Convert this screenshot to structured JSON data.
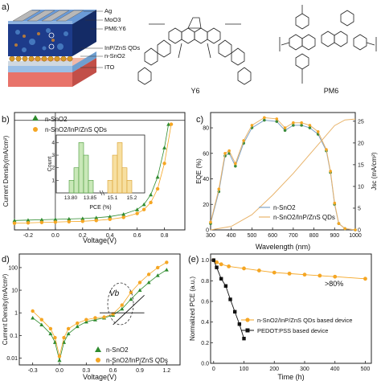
{
  "panel_a": {
    "label": "a)",
    "layers": [
      "Ag",
      "MoO3",
      "PM6:Y6",
      "InP/ZnS QDs",
      "n-SnO2",
      "ITO"
    ],
    "molecule_labels": [
      "Y6",
      "PM6"
    ]
  },
  "colors": {
    "green": "#2e8b2e",
    "orange": "#f5a623",
    "blue_line": "#7fa3c8",
    "orange_line": "#e8b36a"
  },
  "chart_data": [
    {
      "type": "line",
      "panel": "b)",
      "xlabel": "Voltage(V)",
      "ylabel": "Current Density(mA/cm²)",
      "xticks": [
        "-0.2",
        "0.0",
        "0.2",
        "0.4",
        "0.6",
        "0.8"
      ],
      "xlim": [
        -0.3,
        0.95
      ],
      "series": [
        {
          "name": "n-SnO2",
          "marker": "triangle",
          "x": [
            -0.3,
            -0.2,
            -0.1,
            0.0,
            0.1,
            0.2,
            0.3,
            0.4,
            0.5,
            0.6,
            0.65,
            0.7,
            0.75,
            0.8,
            0.83
          ],
          "y": [
            -25.6,
            -25.5,
            -25.4,
            -25.3,
            -25.2,
            -25.1,
            -24.9,
            -24.6,
            -24.0,
            -22.8,
            -21.5,
            -19.0,
            -14.5,
            -7.0,
            -1.0
          ]
        },
        {
          "name": "n-SnO2/InP/ZnS QDs",
          "marker": "circle",
          "x": [
            -0.3,
            -0.2,
            -0.1,
            0.0,
            0.1,
            0.2,
            0.3,
            0.4,
            0.5,
            0.6,
            0.65,
            0.7,
            0.75,
            0.8,
            0.85
          ],
          "y": [
            -26.3,
            -26.2,
            -26.1,
            -26.0,
            -25.9,
            -25.8,
            -25.6,
            -25.3,
            -24.8,
            -23.8,
            -22.8,
            -21.0,
            -17.5,
            -11.0,
            -1.0
          ]
        }
      ],
      "inset": {
        "ylabel": "Count",
        "xlabel": "PCE (%)",
        "xticks": [
          "13.80",
          "13.85",
          "15.1",
          "15.2"
        ],
        "yticks": [
          "1",
          "2",
          "3",
          "4"
        ],
        "groups": [
          {
            "name": "n-SnO2",
            "heights": [
              1,
              2,
              4,
              3,
              1
            ]
          },
          {
            "name": "n-SnO2/InP/ZnS QDs",
            "heights": [
              1,
              3,
              4,
              2,
              1
            ]
          }
        ]
      }
    },
    {
      "type": "line",
      "panel": "c)",
      "xlabel": "Wavelength (nm)",
      "ylabel": "EQE (%)",
      "y2label": "Jsc (mA/cm²)",
      "xticks": [
        "300",
        "400",
        "500",
        "600",
        "700",
        "800",
        "900",
        "1000"
      ],
      "yticks": [
        "0",
        "20",
        "40",
        "60",
        "80"
      ],
      "y2ticks": [
        "0",
        "5",
        "10",
        "15",
        "20",
        "25"
      ],
      "series": [
        {
          "name": "n-SnO2",
          "x": [
            300,
            340,
            370,
            390,
            420,
            460,
            500,
            560,
            620,
            660,
            700,
            740,
            780,
            820,
            860,
            880,
            900,
            920,
            950,
            1000
          ],
          "y": [
            5,
            30,
            58,
            60,
            50,
            68,
            80,
            86,
            85,
            78,
            82,
            82,
            80,
            75,
            62,
            45,
            20,
            5,
            1,
            0
          ]
        },
        {
          "name": "n-SnO2/InP/ZnS QDs",
          "x": [
            300,
            340,
            370,
            390,
            420,
            460,
            500,
            560,
            620,
            660,
            700,
            740,
            780,
            820,
            860,
            880,
            900,
            920,
            950,
            1000
          ],
          "y": [
            6,
            32,
            60,
            62,
            52,
            70,
            82,
            88,
            87,
            80,
            84,
            84,
            82,
            77,
            63,
            46,
            21,
            5,
            1,
            0
          ]
        }
      ],
      "jsc_series": [
        {
          "name": "Jsc",
          "x": [
            300,
            400,
            500,
            600,
            700,
            800,
            900,
            950,
            1000
          ],
          "y": [
            0,
            0.8,
            3.5,
            8.0,
            13.0,
            18.5,
            24.0,
            25.3,
            25.5
          ]
        }
      ]
    },
    {
      "type": "line",
      "panel": "d)",
      "xlabel": "Voltage(V)",
      "ylabel": "Current Density(mA/cm²)",
      "xticks": [
        "-0.3",
        "0.0",
        "0.3",
        "0.6",
        "0.9",
        "1.2"
      ],
      "yticks": [
        "0.01",
        "0.1",
        "1",
        "10",
        "100"
      ],
      "yscale": "log",
      "annotation": "Vb",
      "series": [
        {
          "name": "n-SnO2",
          "marker": "triangle",
          "x": [
            -0.3,
            -0.2,
            -0.1,
            -0.05,
            0.0,
            0.05,
            0.1,
            0.2,
            0.3,
            0.4,
            0.5,
            0.6,
            0.7,
            0.8,
            0.9,
            1.0,
            1.1,
            1.2
          ],
          "y": [
            0.6,
            0.3,
            0.12,
            0.05,
            0.008,
            0.05,
            0.12,
            0.25,
            0.4,
            0.5,
            0.6,
            0.8,
            1.5,
            4,
            10,
            22,
            45,
            80
          ]
        },
        {
          "name": "n-SnO2/InP/ZnS QDs",
          "marker": "circle",
          "x": [
            -0.3,
            -0.2,
            -0.1,
            -0.05,
            0.0,
            0.05,
            0.1,
            0.2,
            0.3,
            0.4,
            0.5,
            0.6,
            0.7,
            0.8,
            0.9,
            1.0,
            1.1,
            1.2
          ],
          "y": [
            1.2,
            0.5,
            0.2,
            0.08,
            0.012,
            0.08,
            0.2,
            0.35,
            0.5,
            0.6,
            0.65,
            0.9,
            2.2,
            8,
            22,
            50,
            100,
            170
          ]
        }
      ]
    },
    {
      "type": "line",
      "panel": "(e)",
      "xlabel": "Time (h)",
      "ylabel": "Normalized PCE (a.u.)",
      "xticks": [
        "0",
        "100",
        "200",
        "300",
        "400",
        "500"
      ],
      "yticks": [
        "0.0",
        "0.2",
        "0.4",
        "0.6",
        "0.8",
        "1.0"
      ],
      "annotation": ">80%",
      "series": [
        {
          "name": "n-SnO2/InP/ZnS QDs based device",
          "marker": "circle",
          "x": [
            0,
            10,
            25,
            50,
            100,
            150,
            200,
            250,
            300,
            350,
            400,
            500
          ],
          "y": [
            1.0,
            0.98,
            0.96,
            0.94,
            0.92,
            0.9,
            0.88,
            0.87,
            0.86,
            0.85,
            0.84,
            0.82
          ]
        },
        {
          "name": "PEDOT:PSS based device",
          "marker": "square",
          "x": [
            0,
            10,
            25,
            40,
            55,
            70,
            85,
            100
          ],
          "y": [
            1.0,
            0.93,
            0.82,
            0.75,
            0.62,
            0.5,
            0.38,
            0.24
          ]
        }
      ]
    }
  ]
}
